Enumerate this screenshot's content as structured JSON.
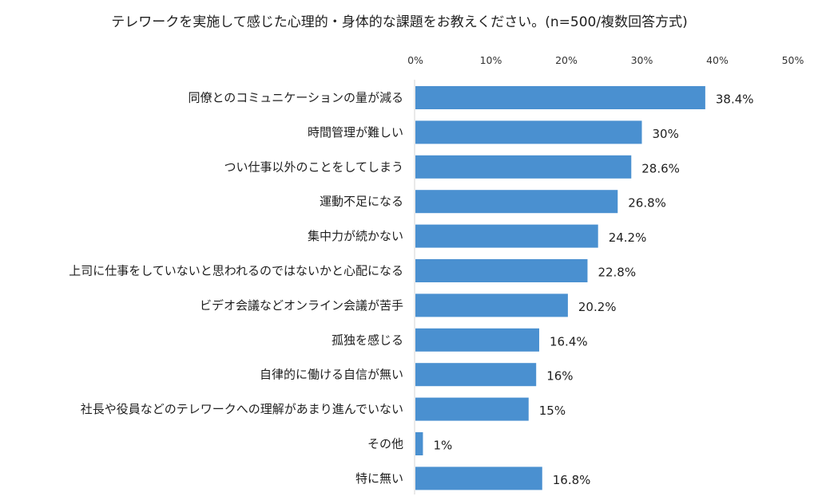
{
  "chart_data": {
    "type": "bar",
    "orientation": "horizontal",
    "title": "テレワークを実施して感じた心理的・身体的な課題をお教えください。(n=500/複数回答方式)",
    "xlabel": "",
    "ylabel": "",
    "xlim": [
      0,
      50
    ],
    "ticks": [
      "0%",
      "10%",
      "20%",
      "30%",
      "40%",
      "50%"
    ],
    "tick_values": [
      0,
      10,
      20,
      30,
      40,
      50
    ],
    "categories": [
      "同僚とのコミュニケーションの量が減る",
      "時間管理が難しい",
      "つい仕事以外のことをしてしまう",
      "運動不足になる",
      "集中力が続かない",
      "上司に仕事をしていないと思われるのではないかと心配になる",
      "ビデオ会議などオンライン会議が苦手",
      "孤独を感じる",
      "自律的に働ける自信が無い",
      "社長や役員などのテレワークへの理解があまり進んでいない",
      "その他",
      "特に無い"
    ],
    "values": [
      38.4,
      30,
      28.6,
      26.8,
      24.2,
      22.8,
      20.2,
      16.4,
      16,
      15,
      1,
      16.8
    ],
    "value_labels": [
      "38.4%",
      "30%",
      "28.6%",
      "26.8%",
      "24.2%",
      "22.8%",
      "20.2%",
      "16.4%",
      "16%",
      "15%",
      "1%",
      "16.8%"
    ],
    "bar_color": "#4a90d0",
    "grid": false,
    "legend": "none"
  }
}
